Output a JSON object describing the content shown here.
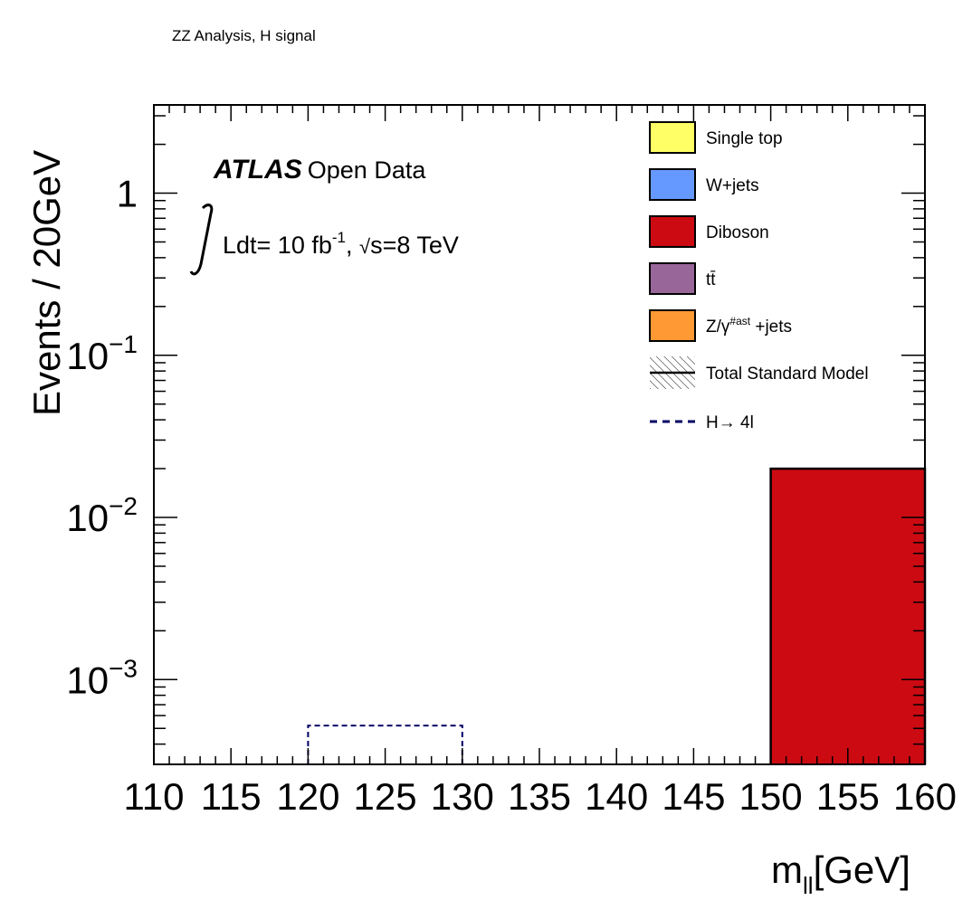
{
  "canvas_title": "ZZ Analysis, H signal",
  "chart_data": {
    "type": "bar",
    "xlabel_main": "m",
    "xlabel_sub": "ll",
    "xlabel_unit": "[GeV]",
    "ylabel": "Events / 20GeV",
    "xlim": [
      110,
      160
    ],
    "ylim": [
      0.0003,
      3.5
    ],
    "yscale": "log",
    "x_ticks": [
      "110",
      "115",
      "120",
      "125",
      "130",
      "135",
      "140",
      "145",
      "150",
      "155",
      "160"
    ],
    "y_ticks": [
      {
        "value": 1,
        "base": "1",
        "exp": ""
      },
      {
        "value": 0.1,
        "base": "10",
        "exp": "−1"
      },
      {
        "value": 0.01,
        "base": "10",
        "exp": "−2"
      },
      {
        "value": 0.001,
        "base": "10",
        "exp": "−3"
      }
    ],
    "atlas_label": {
      "bold": "ATLAS",
      "rest": "Open Data"
    },
    "lumi_label": {
      "prefix": "Ldt= 10 fb",
      "sup": "-1",
      "middle": ", ",
      "sqrt": "s=8 TeV"
    },
    "series": [
      {
        "name": "Single top",
        "color": "#ffff66",
        "bins": []
      },
      {
        "name": "W+jets",
        "color": "#6699ff",
        "bins": []
      },
      {
        "name": "Diboson",
        "color": "#cc0a12",
        "bins": [
          {
            "x0": 150,
            "x1": 160,
            "value": 0.02
          }
        ]
      },
      {
        "name": "tt̄",
        "color": "#996699",
        "bins": []
      },
      {
        "name": "Z/γ",
        "name_sup": "#ast",
        "name_suffix": " +jets",
        "color": "#ff9933",
        "bins": []
      }
    ],
    "total_sm": {
      "name": "Total Standard Model",
      "bins": [
        {
          "x0": 150,
          "x1": 160,
          "value": 0.02
        }
      ]
    },
    "signal": {
      "name": "H→ 4l",
      "color": "#000066",
      "bins": [
        {
          "x0": 120,
          "x1": 130,
          "value": 0.00052
        }
      ]
    },
    "legend_position": "top-right",
    "grid": false
  }
}
